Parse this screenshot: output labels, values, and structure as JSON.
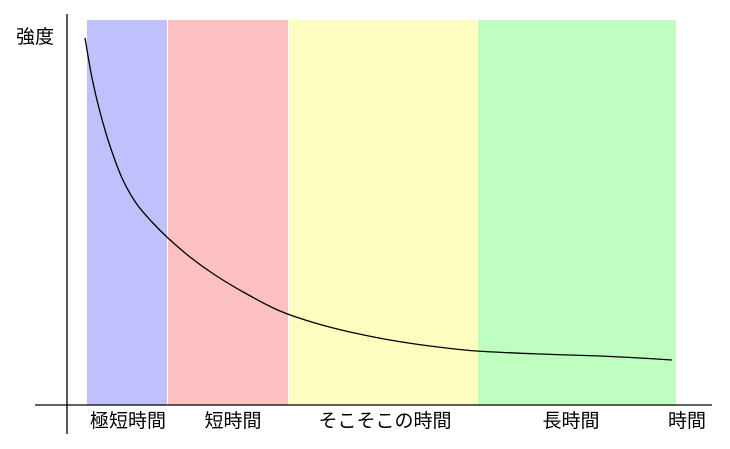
{
  "chart_data": {
    "type": "line",
    "title": "",
    "xlabel": "時間",
    "ylabel": "強度",
    "regions": [
      {
        "label": "極短時間",
        "color": "#c0c0fc"
      },
      {
        "label": "短時間",
        "color": "#fdc0c0"
      },
      {
        "label": "そこそこの時間",
        "color": "#fdfdc0"
      },
      {
        "label": "長時間",
        "color": "#c0fdc0"
      }
    ],
    "series": [
      {
        "type": "decay-curve",
        "color": "#000000"
      }
    ],
    "grid": false,
    "legend": "none"
  }
}
